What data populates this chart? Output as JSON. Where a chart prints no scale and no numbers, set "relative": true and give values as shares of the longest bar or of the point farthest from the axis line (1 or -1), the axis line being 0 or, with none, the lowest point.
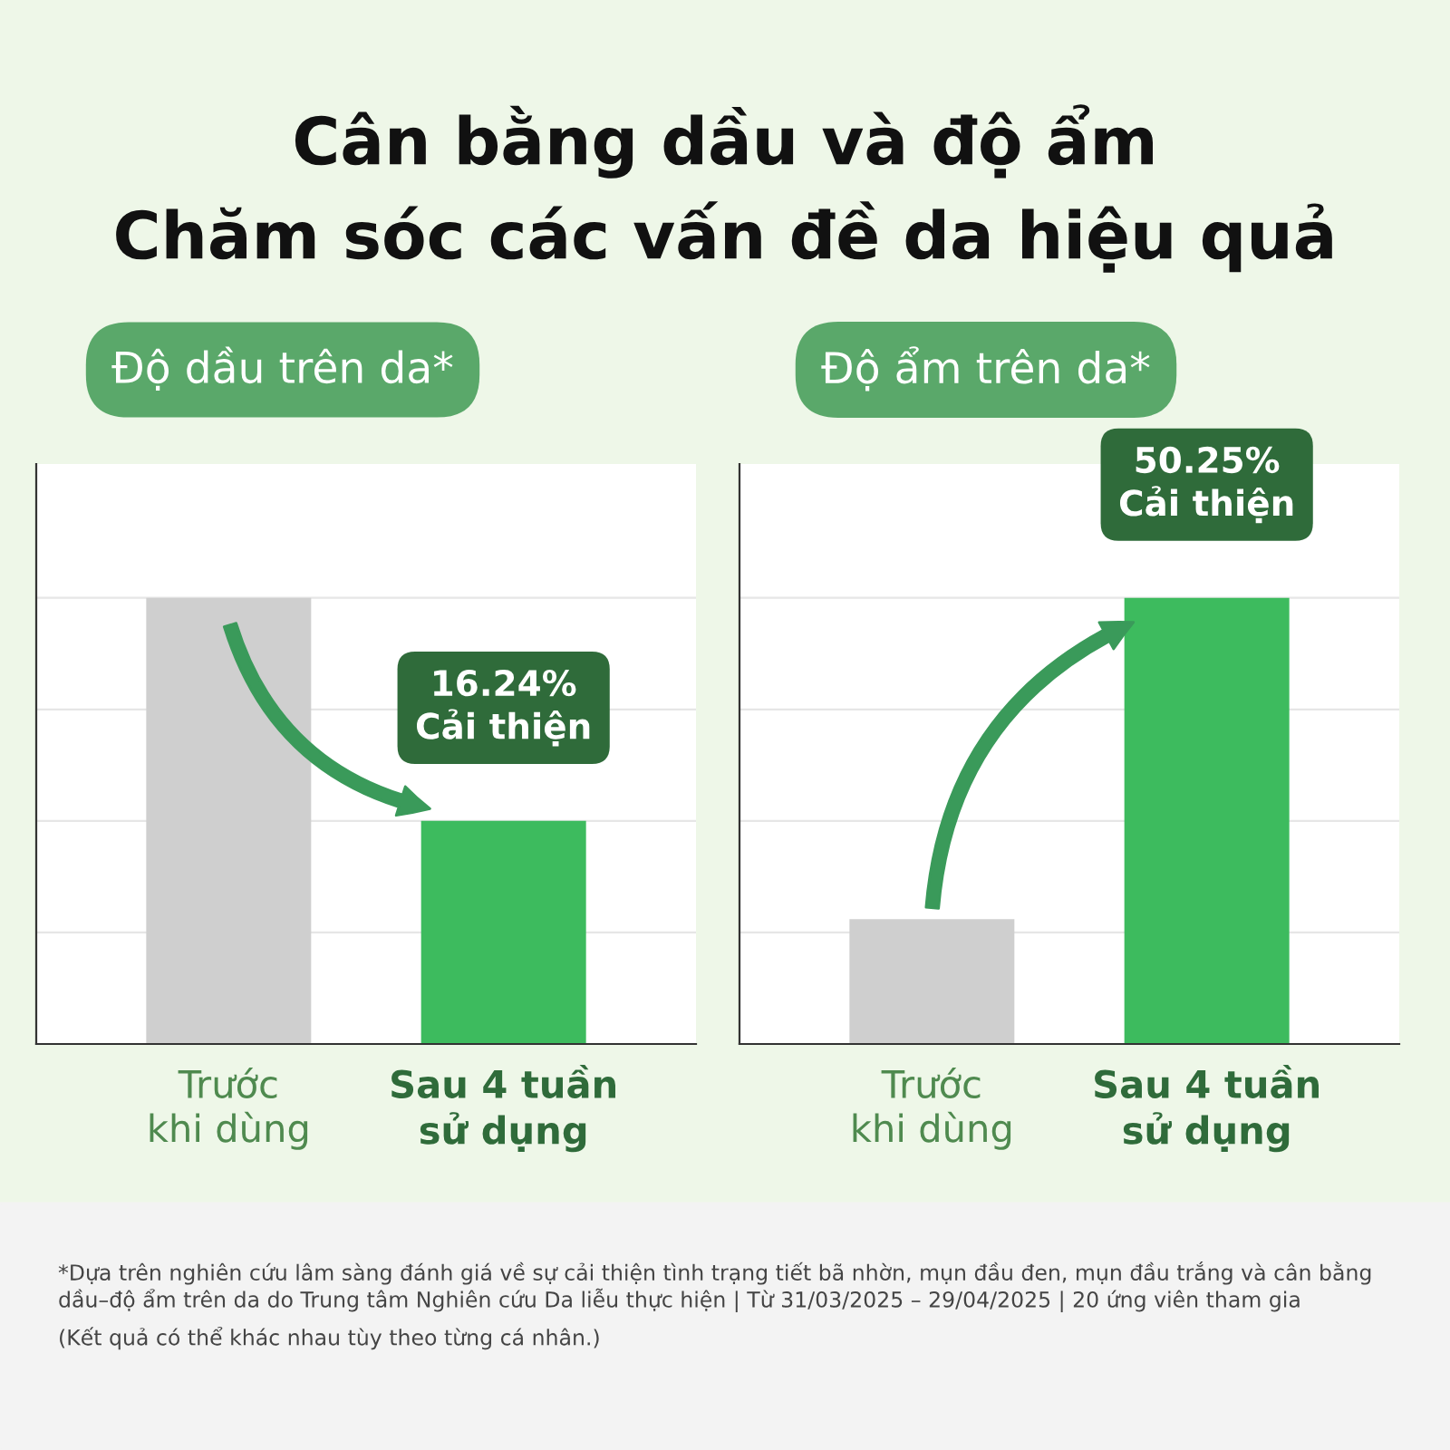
{
  "chart_data": [
    {
      "type": "bar",
      "title": "Độ dầu trên da*",
      "categories": [
        "Trước\nkhi dùng",
        "Sau 4 tuần\nsử dụng"
      ],
      "values": [
        1,
        0.5
      ],
      "colors": [
        "#cfcfcf",
        "#3dbb5e"
      ],
      "relative": true,
      "grid": "y",
      "annotations": [
        "Cân bằng dầu và độ ẩm\nChăm sóc các vấn đề da hiệu quả",
        "16.24%\nCải thiện",
        "*Dựa trên nghiên cứu lâm sàng đánh giá về sự cải thiện tình trạng tiết bã nhờn, mụn đầu đen, mụn đầu trắng và cân bằng dầu–độ ẩm trên da do Trung tâm Nghiên cứu Da liễu thực hiện | Từ 31/03/2025 – 29/04/2025 | 20 ứng viên tham gia",
        "(Kết quả có thể khác nhau tùy theo từng cá nhân.)"
      ]
    },
    {
      "type": "bar",
      "title": "Độ ẩm trên da*",
      "categories": [
        "Trước\nkhi dùng",
        "Sau 4 tuần\nsử dụng"
      ],
      "values": [
        0.28,
        1
      ],
      "colors": [
        "#cfcfcf",
        "#3dbb5e"
      ],
      "relative": true,
      "grid": "y",
      "annotations": [
        "50.25%\nCải thiện"
      ]
    }
  ]
}
